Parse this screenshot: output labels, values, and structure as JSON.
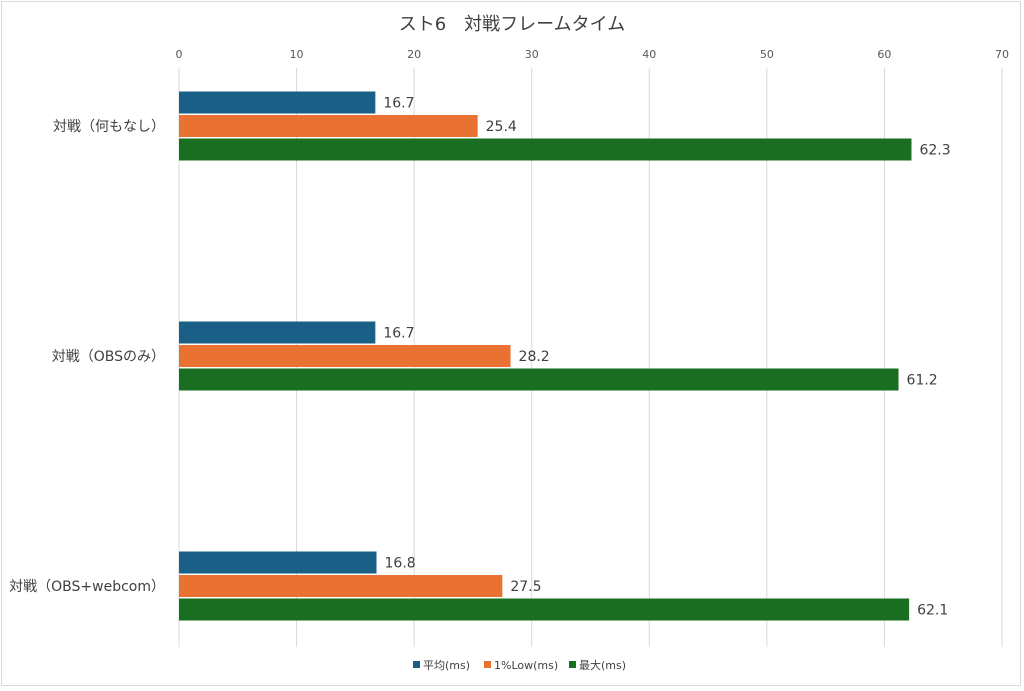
{
  "chart_data": {
    "type": "bar",
    "orientation": "horizontal",
    "title": "スト6　対戦フレームタイム",
    "categories": [
      "対戦（何もなし）",
      "対戦（OBSのみ）",
      "対戦（OBS+webcom）"
    ],
    "series": [
      {
        "name": "平均(ms)",
        "color": "#1a5f85",
        "values": [
          16.7,
          16.7,
          16.8
        ]
      },
      {
        "name": "1%Low(ms)",
        "color": "#e97132",
        "values": [
          25.4,
          28.2,
          27.5
        ]
      },
      {
        "name": "最大(ms)",
        "color": "#1a6e22",
        "values": [
          62.3,
          61.2,
          62.1
        ]
      }
    ],
    "xlim": [
      0,
      70
    ],
    "xticks": [
      0,
      10,
      20,
      30,
      40,
      50,
      60,
      70
    ],
    "xaxis_position": "top",
    "grid": true,
    "legend_position": "bottom"
  }
}
